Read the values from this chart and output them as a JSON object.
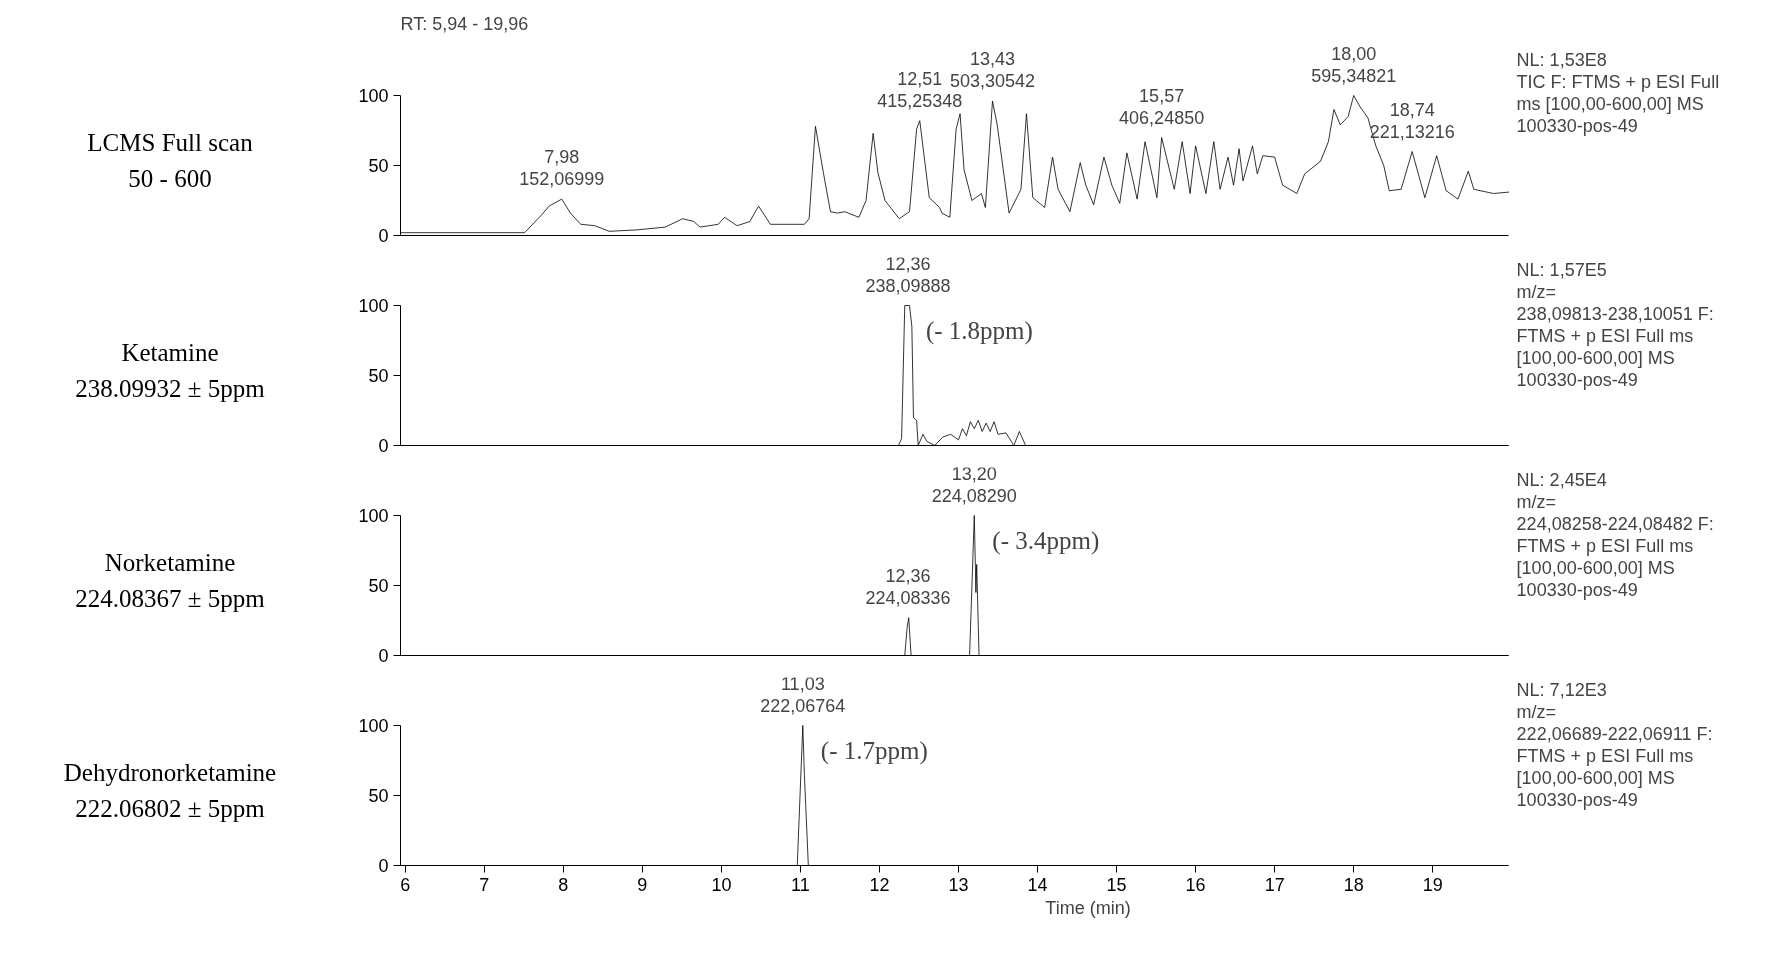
{
  "chart_data": [
    {
      "type": "line",
      "title": "LCMS Full scan\n50 - 600",
      "xlim": [
        5.94,
        19.96
      ],
      "ylim": [
        0,
        100
      ],
      "yticks": [
        0,
        50,
        100
      ],
      "xticks": [
        6,
        7,
        8,
        9,
        10,
        11,
        12,
        13,
        14,
        15,
        16,
        17,
        18,
        19
      ],
      "tick_labels": "y",
      "grid": false,
      "x": [
        5.94,
        6.0,
        7.51,
        7.73,
        7.82,
        7.98,
        8.09,
        8.22,
        8.4,
        8.58,
        8.93,
        9.29,
        9.51,
        9.65,
        9.73,
        9.96,
        10.04,
        10.2,
        10.36,
        10.47,
        10.62,
        11.05,
        11.11,
        11.19,
        11.29,
        11.38,
        11.47,
        11.56,
        11.74,
        11.83,
        11.92,
        11.98,
        12.07,
        12.25,
        12.38,
        12.47,
        12.51,
        12.63,
        12.76,
        12.79,
        12.89,
        12.97,
        13.02,
        13.07,
        13.17,
        13.29,
        13.34,
        13.43,
        13.49,
        13.64,
        13.79,
        13.86,
        13.94,
        14.09,
        14.19,
        14.26,
        14.41,
        14.54,
        14.61,
        14.71,
        14.84,
        14.94,
        15.04,
        15.13,
        15.26,
        15.36,
        15.51,
        15.57,
        15.73,
        15.83,
        15.93,
        16.0,
        16.13,
        16.23,
        16.31,
        16.41,
        16.48,
        16.55,
        16.6,
        16.72,
        16.78,
        16.85,
        17.0,
        17.1,
        17.28,
        17.38,
        17.58,
        17.68,
        17.75,
        17.83,
        17.93,
        18.0,
        18.08,
        18.18,
        18.28,
        18.38,
        18.45,
        18.6,
        18.74,
        18.9,
        19.05,
        19.17,
        19.32,
        19.45,
        19.52,
        19.77,
        19.96
      ],
      "series": [
        {
          "color": "#000000",
          "values": [
            2,
            2,
            2,
            15,
            21,
            26,
            16,
            8,
            7,
            3,
            4,
            6,
            12,
            10,
            6,
            8,
            13,
            7,
            10,
            21,
            8,
            8,
            12,
            78,
            45,
            17,
            16,
            17,
            13,
            25,
            73,
            45,
            25,
            12,
            17,
            76,
            82,
            27,
            20,
            16,
            13,
            76,
            87,
            47,
            25,
            30,
            20,
            96,
            79,
            16,
            33,
            87,
            27,
            20,
            56,
            33,
            17,
            52,
            36,
            22,
            56,
            36,
            23,
            59,
            26,
            67,
            27,
            70,
            33,
            67,
            30,
            64,
            30,
            67,
            33,
            56,
            36,
            62,
            39,
            64,
            44,
            57,
            56,
            36,
            30,
            44,
            53,
            67,
            90,
            79,
            85,
            100,
            92,
            84,
            64,
            50,
            32,
            33,
            60,
            27,
            57,
            32,
            26,
            46,
            33,
            30,
            31
          ]
        }
      ],
      "annotations": [
        {
          "text": "7,98\n152,06999",
          "x": 7.98,
          "y": 26
        },
        {
          "text": "12,51\n415,25348",
          "x": 12.51,
          "y": 82
        },
        {
          "text": "13,43\n503,30542",
          "x": 13.43,
          "y": 96
        },
        {
          "text": "15,57\n406,24850",
          "x": 15.57,
          "y": 70
        },
        {
          "text": "18,00\n595,34821",
          "x": 18.0,
          "y": 100
        },
        {
          "text": "18,74\n221,13216",
          "x": 18.74,
          "y": 60
        },
        "RT: 5,94 - 19,96",
        "NL: 1,53E8\nTIC F: FTMS + p ESI Full\nms [100,00-600,00]  MS\n100330-pos-49"
      ]
    },
    {
      "type": "line",
      "title": "Ketamine\n238.09932 ± 5ppm",
      "xlim": [
        5.94,
        19.96
      ],
      "ylim": [
        0,
        100
      ],
      "yticks": [
        0,
        50,
        100
      ],
      "xticks": [
        6,
        7,
        8,
        9,
        10,
        11,
        12,
        13,
        14,
        15,
        16,
        17,
        18,
        19
      ],
      "tick_labels": "y",
      "grid": false,
      "x": [
        5.94,
        12.24,
        12.28,
        12.32,
        12.38,
        12.41,
        12.43,
        12.47,
        12.49,
        12.55,
        12.6,
        12.7,
        12.8,
        12.9,
        13.0,
        13.05,
        13.1,
        13.15,
        13.2,
        13.25,
        13.3,
        13.35,
        13.4,
        13.45,
        13.5,
        13.6,
        13.7,
        13.77,
        13.85,
        19.96
      ],
      "series": [
        {
          "color": "#000000",
          "values": [
            0,
            0,
            5,
            100,
            100,
            85,
            20,
            18,
            0,
            8,
            3,
            0,
            6,
            8,
            4,
            12,
            7,
            17,
            12,
            18,
            10,
            16,
            10,
            17,
            8,
            9,
            0,
            10,
            0,
            0
          ]
        }
      ],
      "annotations": [
        {
          "text": "12,36\n238,09888",
          "x": 12.36,
          "y": 100
        },
        {
          "text": "(- 1.8ppm)",
          "x": 12.36,
          "y": 100
        },
        "NL: 1,57E5\nm/z=\n238,09813-238,10051 F:\nFTMS + p ESI Full ms\n[100,00-600,00]  MS\n100330-pos-49"
      ]
    },
    {
      "type": "line",
      "title": "Norketamine\n224.08367 ± 5ppm",
      "xlim": [
        5.94,
        19.96
      ],
      "ylim": [
        0,
        100
      ],
      "yticks": [
        0,
        50,
        100
      ],
      "xticks": [
        6,
        7,
        8,
        9,
        10,
        11,
        12,
        13,
        14,
        15,
        16,
        17,
        18,
        19
      ],
      "tick_labels": "y",
      "grid": false,
      "x": [
        5.94,
        12.32,
        12.35,
        12.37,
        12.4,
        13.14,
        13.2,
        13.22,
        13.23,
        13.26,
        19.96
      ],
      "series": [
        {
          "color": "#000000",
          "values": [
            0,
            0,
            20,
            27,
            0,
            0,
            100,
            45,
            65,
            0,
            0
          ]
        }
      ],
      "annotations": [
        {
          "text": "12,36\n224,08336",
          "x": 12.36,
          "y": 27
        },
        {
          "text": "13,20\n224,08290",
          "x": 13.2,
          "y": 100
        },
        {
          "text": "(- 3.4ppm)",
          "x": 13.2,
          "y": 100
        },
        "NL: 2,45E4\nm/z=\n224,08258-224,08482 F:\nFTMS + p ESI Full ms\n[100,00-600,00]  MS\n100330-pos-49"
      ]
    },
    {
      "type": "line",
      "title": "Dehydronorketamine\n222.06802 ± 5ppm",
      "xlabel": "Time (min)",
      "xlim": [
        5.94,
        19.96
      ],
      "ylim": [
        0,
        100
      ],
      "yticks": [
        0,
        50,
        100
      ],
      "xticks": [
        6,
        7,
        8,
        9,
        10,
        11,
        12,
        13,
        14,
        15,
        16,
        17,
        18,
        19
      ],
      "grid": false,
      "x": [
        5.94,
        10.96,
        11.03,
        11.05,
        11.1,
        19.96
      ],
      "series": [
        {
          "color": "#000000",
          "values": [
            0,
            0,
            100,
            65,
            0,
            0
          ]
        }
      ],
      "annotations": [
        {
          "text": "11,03\n222,06764",
          "x": 11.03,
          "y": 100
        },
        {
          "text": "(- 1.7ppm)",
          "x": 11.03,
          "y": 100
        },
        "NL: 7,12E3\nm/z=\n222,06689-222,06911 F:\nFTMS + p ESI Full ms\n[100,00-600,00]  MS\n100330-pos-49"
      ]
    }
  ]
}
